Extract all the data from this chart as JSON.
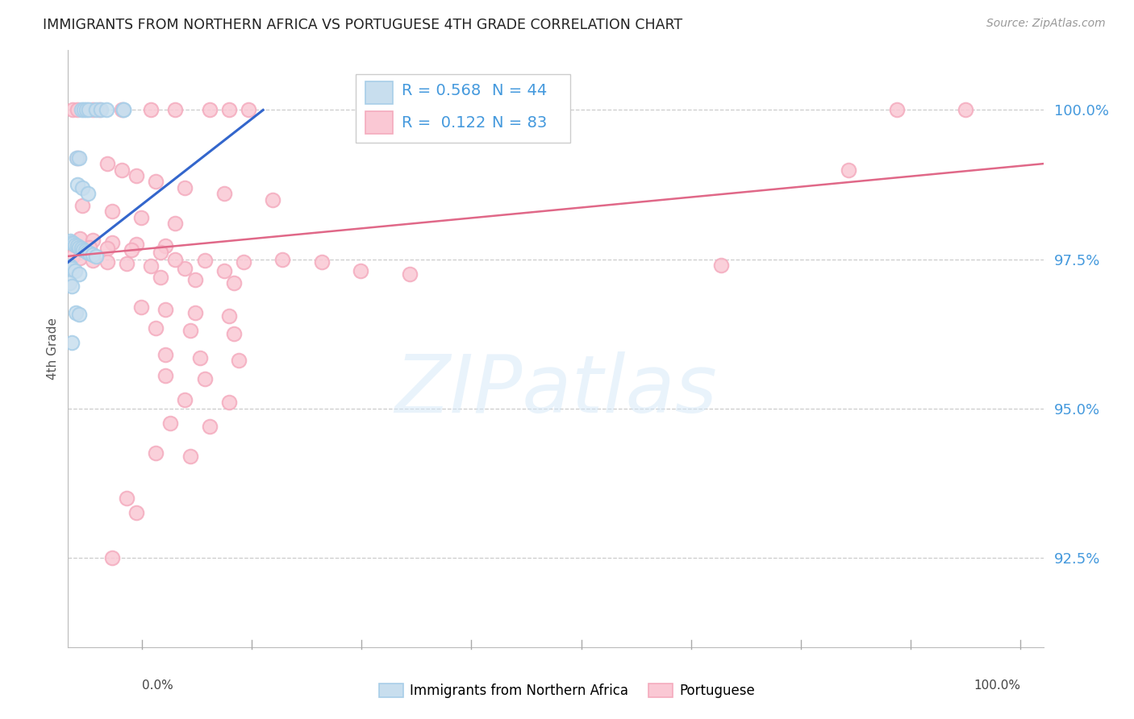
{
  "title": "IMMIGRANTS FROM NORTHERN AFRICA VS PORTUGUESE 4TH GRADE CORRELATION CHART",
  "source": "Source: ZipAtlas.com",
  "ylabel": "4th Grade",
  "xlim": [
    0.0,
    100.0
  ],
  "ylim": [
    91.0,
    101.0
  ],
  "yticks": [
    92.5,
    95.0,
    97.5,
    100.0
  ],
  "blue_R": "0.568",
  "blue_N": "44",
  "pink_R": "0.122",
  "pink_N": "83",
  "blue_color": "#A8CEE8",
  "pink_color": "#F4ABBE",
  "blue_fill": "#C8DEEE",
  "pink_fill": "#FAC8D4",
  "blue_line_color": "#3366CC",
  "pink_line_color": "#E06888",
  "right_tick_color": "#4499DD",
  "legend_value_color": "#4499DD",
  "blue_points_x": [
    1.4,
    1.6,
    1.85,
    2.1,
    2.9,
    3.4,
    3.9,
    5.7,
    0.9,
    1.1,
    1.0,
    1.5,
    2.0,
    0.2,
    0.35,
    0.55,
    0.75,
    0.95,
    1.15,
    1.35,
    1.55,
    1.75,
    1.95,
    2.2,
    2.5,
    2.9,
    0.2,
    0.4,
    0.7,
    1.1,
    0.15,
    0.35,
    0.8,
    1.1,
    0.35,
    5.7
  ],
  "blue_points_y": [
    100.0,
    100.0,
    100.0,
    100.0,
    100.0,
    100.0,
    100.0,
    100.0,
    99.2,
    99.2,
    98.75,
    98.7,
    98.6,
    97.8,
    97.78,
    97.76,
    97.74,
    97.72,
    97.7,
    97.68,
    97.66,
    97.64,
    97.62,
    97.6,
    97.58,
    97.55,
    97.38,
    97.35,
    97.3,
    97.25,
    97.1,
    97.05,
    96.6,
    96.58,
    96.1,
    100.0
  ],
  "pink_points_x": [
    0.5,
    1.0,
    2.5,
    3.2,
    5.5,
    8.5,
    11.0,
    14.5,
    16.5,
    18.5,
    33.0,
    38.5,
    42.0,
    85.0,
    92.0,
    1.0,
    4.0,
    5.5,
    7.0,
    9.0,
    12.0,
    16.0,
    21.0,
    1.5,
    4.5,
    7.5,
    11.0,
    1.2,
    2.5,
    4.5,
    7.0,
    10.0,
    0.8,
    2.2,
    4.0,
    6.5,
    9.5,
    0.5,
    1.2,
    2.5,
    4.0,
    6.0,
    8.5,
    12.0,
    16.0,
    11.0,
    14.0,
    18.0,
    9.5,
    13.0,
    17.0,
    22.0,
    26.0,
    30.0,
    35.0,
    7.5,
    10.0,
    13.0,
    16.5,
    9.0,
    12.5,
    17.0,
    10.0,
    13.5,
    17.5,
    10.0,
    14.0,
    12.0,
    16.5,
    10.5,
    14.5,
    9.0,
    12.5,
    6.0,
    7.0,
    4.5,
    80.0,
    67.0
  ],
  "pink_points_y": [
    100.0,
    100.0,
    100.0,
    100.0,
    100.0,
    100.0,
    100.0,
    100.0,
    100.0,
    100.0,
    100.0,
    100.0,
    100.0,
    100.0,
    100.0,
    99.2,
    99.1,
    99.0,
    98.9,
    98.8,
    98.7,
    98.6,
    98.5,
    98.4,
    98.3,
    98.2,
    98.1,
    97.85,
    97.82,
    97.78,
    97.75,
    97.72,
    97.72,
    97.7,
    97.68,
    97.65,
    97.62,
    97.55,
    97.52,
    97.48,
    97.45,
    97.42,
    97.38,
    97.35,
    97.3,
    97.5,
    97.48,
    97.45,
    97.2,
    97.15,
    97.1,
    97.5,
    97.45,
    97.3,
    97.25,
    96.7,
    96.65,
    96.6,
    96.55,
    96.35,
    96.3,
    96.25,
    95.9,
    95.85,
    95.8,
    95.55,
    95.5,
    95.15,
    95.1,
    94.75,
    94.7,
    94.25,
    94.2,
    93.5,
    93.25,
    92.5,
    99.0,
    97.4
  ],
  "blue_line_x": [
    0.0,
    20.0
  ],
  "blue_line_y": [
    97.45,
    100.0
  ],
  "pink_line_x": [
    0.0,
    100.0
  ],
  "pink_line_y": [
    97.55,
    99.1
  ],
  "watermark_text": "ZIPatlas"
}
